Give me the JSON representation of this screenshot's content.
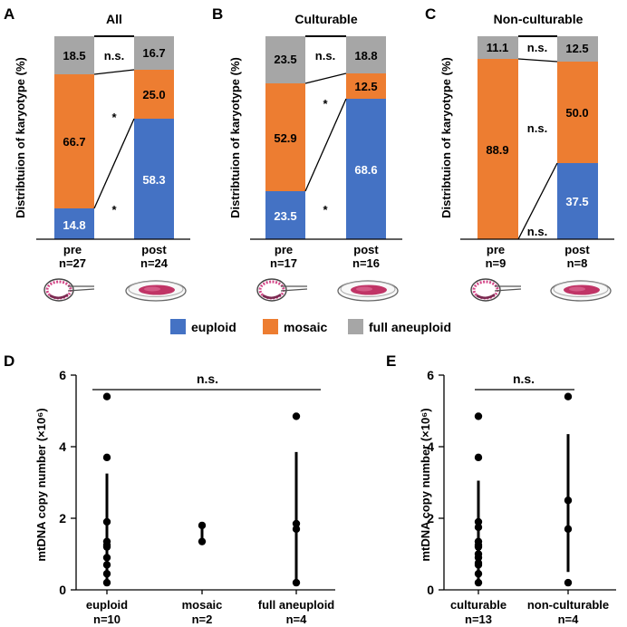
{
  "colors": {
    "euploid": "#4472c4",
    "mosaic": "#ed7d31",
    "aneuploid": "#a6a6a6"
  },
  "stacked_ylabel": "Distribtuion of  karyotype (%)",
  "scatter_ylabel": "mtDNA copy number (×10⁶)",
  "legend": [
    {
      "key": "euploid",
      "label": "euploid"
    },
    {
      "key": "mosaic",
      "label": "mosaic"
    },
    {
      "key": "aneuploid",
      "label": "full aneuploid"
    }
  ],
  "chart_data": [
    {
      "panel": "A",
      "type": "bar",
      "stacked": true,
      "title": "All",
      "categories": [
        {
          "name": "pre",
          "n": "n=27"
        },
        {
          "name": "post",
          "n": "n=24"
        }
      ],
      "series": [
        {
          "name": "euploid",
          "values": [
            14.8,
            58.3
          ]
        },
        {
          "name": "mosaic",
          "values": [
            66.7,
            25.0
          ]
        },
        {
          "name": "full aneuploid",
          "values": [
            18.5,
            16.7
          ]
        }
      ],
      "labels": [
        [
          "14.8",
          "58.3"
        ],
        [
          "66.7",
          "25.0"
        ],
        [
          "18.5",
          "16.7"
        ]
      ],
      "significance": [
        "*",
        "*",
        "n.s."
      ],
      "ylabel": "Distribtuion of  karyotype (%)",
      "ylim": [
        0,
        100
      ]
    },
    {
      "panel": "B",
      "type": "bar",
      "stacked": true,
      "title": "Culturable",
      "categories": [
        {
          "name": "pre",
          "n": "n=17"
        },
        {
          "name": "post",
          "n": "n=16"
        }
      ],
      "series": [
        {
          "name": "euploid",
          "values": [
            23.5,
            68.6
          ]
        },
        {
          "name": "mosaic",
          "values": [
            52.9,
            12.5
          ]
        },
        {
          "name": "full aneuploid",
          "values": [
            23.5,
            18.8
          ]
        }
      ],
      "labels": [
        [
          "23.5",
          "68.6"
        ],
        [
          "52.9",
          "12.5"
        ],
        [
          "23.5",
          "18.8"
        ]
      ],
      "significance": [
        "*",
        "*",
        "n.s."
      ],
      "ylabel": "Distribtuion of  karyotype (%)",
      "ylim": [
        0,
        100
      ]
    },
    {
      "panel": "C",
      "type": "bar",
      "stacked": true,
      "title": "Non-culturable",
      "categories": [
        {
          "name": "pre",
          "n": "n=9"
        },
        {
          "name": "post",
          "n": "n=8"
        }
      ],
      "series": [
        {
          "name": "euploid",
          "values": [
            0,
            37.5
          ]
        },
        {
          "name": "mosaic",
          "values": [
            88.9,
            50.0
          ]
        },
        {
          "name": "full aneuploid",
          "values": [
            11.1,
            12.5
          ]
        }
      ],
      "labels": [
        [
          "",
          "37.5"
        ],
        [
          "88.9",
          "50.0"
        ],
        [
          "11.1",
          "12.5"
        ]
      ],
      "significance": [
        "n.s.",
        "n.s.",
        "n.s."
      ],
      "ylabel": "Distribtuion of  karyotype (%)",
      "ylim": [
        0,
        100
      ]
    },
    {
      "panel": "D",
      "type": "scatter",
      "categories": [
        {
          "name": "euploid",
          "n": "n=10"
        },
        {
          "name": "mosaic",
          "n": "n=2"
        },
        {
          "name": "full aneuploid",
          "n": "n=4"
        }
      ],
      "points": [
        [
          5.4,
          3.7,
          1.9,
          1.35,
          1.25,
          0.9,
          0.7,
          0.45,
          0.2,
          1.2
        ],
        [
          1.8,
          1.35
        ],
        [
          4.85,
          1.85,
          1.7,
          0.2
        ]
      ],
      "error_bars": [
        [
          0.2,
          3.25
        ],
        [
          1.35,
          1.8
        ],
        [
          0.2,
          3.85
        ]
      ],
      "ylabel": "mtDNA copy number (×10⁶)",
      "ylim": [
        0,
        6
      ],
      "yticks": [
        0,
        2,
        4,
        6
      ],
      "significance": "n.s."
    },
    {
      "panel": "E",
      "type": "scatter",
      "categories": [
        {
          "name": "culturable",
          "n": "n=13"
        },
        {
          "name": "non-culturable",
          "n": "n=4"
        }
      ],
      "points": [
        [
          4.85,
          3.7,
          1.9,
          1.75,
          1.35,
          1.25,
          1.2,
          0.9,
          0.75,
          0.7,
          0.45,
          0.2,
          1.0
        ],
        [
          5.4,
          2.5,
          1.7,
          0.2
        ]
      ],
      "error_bars": [
        [
          0.2,
          3.05
        ],
        [
          0.5,
          4.35
        ]
      ],
      "ylabel": "mtDNA copy number (×10⁶)",
      "ylim": [
        0,
        6
      ],
      "yticks": [
        0,
        2,
        4,
        6
      ],
      "significance": "n.s."
    }
  ]
}
